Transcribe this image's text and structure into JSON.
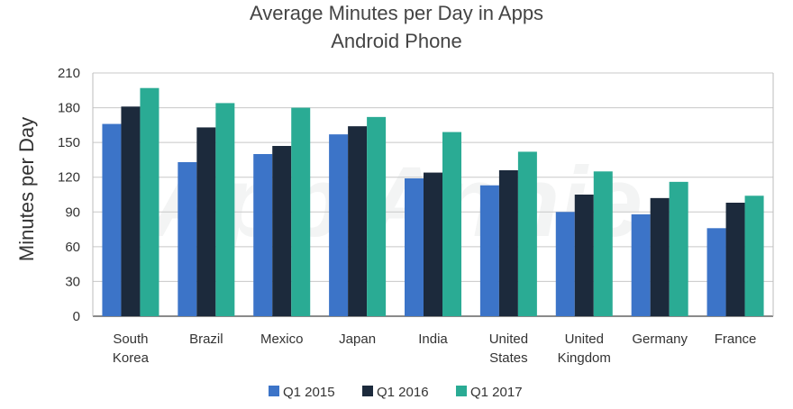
{
  "chart_data": {
    "type": "bar",
    "title": "Average Minutes per Day in Apps",
    "subtitle": "Android Phone",
    "xlabel": "",
    "ylabel": "Minutes per Day",
    "ylim": [
      0,
      210
    ],
    "yticks": [
      0,
      30,
      60,
      90,
      120,
      150,
      180,
      210
    ],
    "grid": true,
    "legend_position": "bottom",
    "watermark": "App Annie",
    "categories": [
      [
        "South",
        "Korea"
      ],
      [
        "Brazil"
      ],
      [
        "Mexico"
      ],
      [
        "Japan"
      ],
      [
        "India"
      ],
      [
        "United",
        "States"
      ],
      [
        "United",
        "Kingdom"
      ],
      [
        "Germany"
      ],
      [
        "France"
      ]
    ],
    "series": [
      {
        "name": "Q1 2015",
        "color": "#3c74c8",
        "values": [
          166,
          133,
          140,
          157,
          119,
          113,
          90,
          88,
          76
        ]
      },
      {
        "name": "Q1 2016",
        "color": "#1c2a3c",
        "values": [
          181,
          163,
          147,
          164,
          124,
          126,
          105,
          102,
          98
        ]
      },
      {
        "name": "Q1 2017",
        "color": "#2aab94",
        "values": [
          197,
          184,
          180,
          172,
          159,
          142,
          125,
          116,
          104
        ]
      }
    ]
  }
}
